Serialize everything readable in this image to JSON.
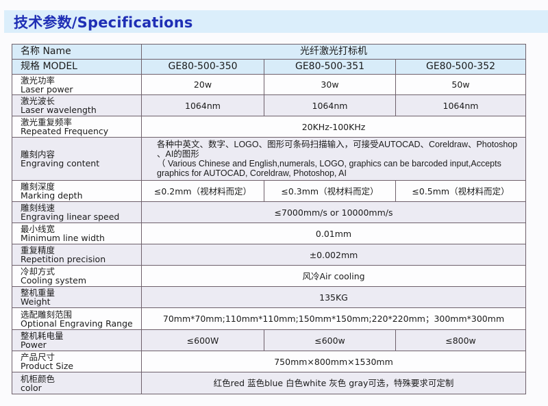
{
  "title": "技术参数/Specifications",
  "header": {
    "name_label": "名称 Name",
    "name_value": "光纤激光打标机",
    "model_label": "规格 MODEL",
    "models": [
      "GE80-500-350",
      "GE80-500-351",
      "GE80-500-352"
    ]
  },
  "rows": [
    {
      "zh": "激光功率",
      "en": "Laser power",
      "values": [
        "20w",
        "30w",
        "50w"
      ]
    },
    {
      "zh": "激光波长",
      "en": "Laser wavelength",
      "values": [
        "1064nm",
        "1064nm",
        "1064nm"
      ]
    },
    {
      "zh": "激光重复频率",
      "en": "Repeated Frequency",
      "value": "20KHz-100KHz"
    },
    {
      "zh": "雕刻内容",
      "en": "Engraving content",
      "value_zh": "各种中英文、数字、LOGO、图形可条码扫描输入，可接受AUTOCAD、Coreldraw、Photoshop 、AI的图形",
      "value_en": "（ Various Chinese and English,numerals, LOGO, graphics can be barcoded input,Accepts graphics for AUTOCAD, Coreldraw, Photoshop, AI"
    },
    {
      "zh": "雕刻深度",
      "en": "Marking depth",
      "values": [
        "≤0.2mm（视材料而定）",
        "≤0.3mm（视材料而定）",
        "≤0.5mm（视材料而定）"
      ]
    },
    {
      "zh": "雕刻线速",
      "en": "Engraving linear speed",
      "value": "≤7000mm/s or 10000mm/s"
    },
    {
      "zh": "最小线宽",
      "en": "Minimum line width",
      "value": "0.01mm"
    },
    {
      "zh": "重复精度",
      "en": "Repetition precision",
      "value": "±0.002mm"
    },
    {
      "zh": "冷却方式",
      "en": "Cooling system",
      "value": "风冷Air cooling"
    },
    {
      "zh": "整机重量",
      "en": "Weight",
      "value": "135KG"
    },
    {
      "zh": "选配雕刻范围",
      "en": "Optional Engraving Range",
      "value": "70mm*70mm;110mm*110mm;150mm*150mm;220*220mm；300mm*300mm"
    },
    {
      "zh": "整机耗电量",
      "en": "Power",
      "values": [
        "≤600W",
        "≤600w",
        "≤800w"
      ]
    },
    {
      "zh": "产品尺寸",
      "en": "Product Size",
      "value": "750mm×800mm×1530mm"
    },
    {
      "zh": "机柜颜色",
      "en": "color",
      "value": "红色red 蓝色blue 白色white 灰色 gray可选，特殊要求可定制"
    }
  ],
  "colors": {
    "title": "#1f2fb5",
    "title_band": "#dbeefb",
    "header_row": "#d8ecf9",
    "shaded_row": "#ecebf3",
    "border": "#6d5f6a"
  }
}
